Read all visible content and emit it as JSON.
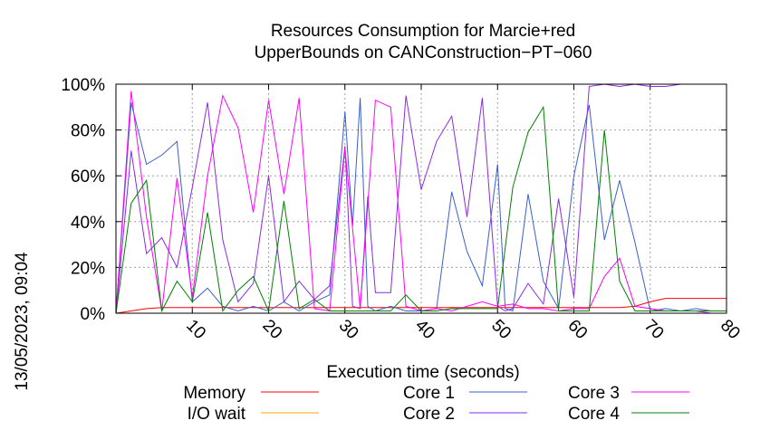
{
  "chart_data": {
    "type": "line",
    "title": [
      "Resources Consumption for Marcie+red",
      "UpperBounds on CANConstruction−PT−060"
    ],
    "xlabel": "Execution time (seconds)",
    "ylabel": "",
    "side_label": "13/05/2023, 09:04",
    "xlim": [
      0,
      80
    ],
    "ylim": [
      0,
      100
    ],
    "x_ticks": [
      10,
      20,
      30,
      40,
      50,
      60,
      70,
      80
    ],
    "y_ticks": [
      0,
      20,
      40,
      60,
      80,
      100
    ],
    "y_tick_labels": [
      "0%",
      "20%",
      "40%",
      "60%",
      "80%",
      "100%"
    ],
    "grid": true,
    "legend_position": "bottom",
    "series": [
      {
        "name": "Memory",
        "color": "#ff0000",
        "x": [
          0,
          2,
          4,
          6,
          8,
          10,
          12,
          14,
          16,
          18,
          20,
          22,
          24,
          26,
          28,
          30,
          32,
          34,
          36,
          38,
          40,
          42,
          44,
          46,
          48,
          50,
          52,
          54,
          56,
          58,
          60,
          62,
          64,
          66,
          68,
          70,
          72,
          74,
          76,
          78,
          80
        ],
        "y": [
          0,
          1,
          2,
          2.5,
          2.5,
          2.5,
          2.5,
          2.5,
          2.5,
          2.5,
          2.5,
          2.5,
          2.5,
          2.5,
          2.5,
          2.5,
          2.5,
          2.5,
          2.5,
          2.5,
          2.5,
          2.5,
          2.5,
          2.5,
          2.5,
          2.5,
          2.5,
          2.5,
          2.5,
          2.5,
          2.5,
          2.5,
          2.5,
          2.5,
          3,
          5,
          6.5,
          6.5,
          6.5,
          6.5,
          6.5
        ]
      },
      {
        "name": "I/O wait",
        "color": "#ffa500",
        "x": [
          0,
          10,
          20,
          30,
          40,
          50,
          60,
          70,
          80
        ],
        "y": [
          0,
          0,
          0,
          0,
          0,
          0,
          0,
          0,
          0
        ]
      },
      {
        "name": "Core 1",
        "color": "#3a5fcd",
        "x": [
          0,
          2,
          4,
          6,
          8,
          10,
          12,
          14,
          16,
          18,
          20,
          22,
          24,
          26,
          28,
          30,
          31,
          32,
          33,
          34,
          35,
          36,
          38,
          40,
          42,
          44,
          46,
          48,
          50,
          51,
          52,
          54,
          56,
          58,
          60,
          62,
          64,
          66,
          68,
          70,
          72,
          74,
          76,
          78,
          80
        ],
        "y": [
          0,
          92,
          65,
          69,
          75,
          5,
          11,
          3,
          1,
          3,
          1,
          5,
          1,
          5,
          8,
          88,
          38,
          94,
          3,
          1,
          2,
          3,
          1,
          1,
          2,
          53,
          27,
          12,
          65,
          2,
          1,
          52,
          14,
          2,
          60,
          91,
          32,
          58,
          31,
          1,
          2,
          1,
          2,
          1,
          1
        ]
      },
      {
        "name": "Core 2",
        "color": "#8a2be2",
        "x": [
          0,
          2,
          4,
          6,
          8,
          10,
          12,
          14,
          16,
          18,
          20,
          22,
          24,
          26,
          28,
          30,
          31,
          32,
          33,
          34,
          36,
          38,
          40,
          42,
          44,
          46,
          48,
          50,
          51,
          52,
          54,
          56,
          58,
          60,
          62,
          64,
          66,
          68,
          70,
          72,
          74,
          76,
          78,
          80
        ],
        "y": [
          0,
          71,
          26,
          33,
          20,
          55,
          92,
          32,
          5,
          13,
          60,
          5,
          14,
          6,
          12,
          73,
          3,
          2,
          51,
          9,
          9,
          95,
          54,
          75,
          86,
          42,
          94,
          3,
          1,
          2,
          13,
          4,
          50,
          7,
          99,
          100,
          99,
          100,
          99,
          99,
          100,
          100,
          100,
          100
        ]
      },
      {
        "name": "Core 3",
        "color": "#ff00ff",
        "x": [
          0,
          2,
          4,
          6,
          8,
          10,
          12,
          14,
          16,
          18,
          20,
          22,
          24,
          26,
          28,
          30,
          32,
          34,
          36,
          38,
          40,
          42,
          44,
          46,
          48,
          50,
          52,
          54,
          56,
          58,
          60,
          62,
          64,
          66,
          68,
          70,
          72,
          74,
          76,
          78,
          80
        ],
        "y": [
          0,
          97,
          42,
          1,
          59,
          7,
          60,
          95,
          81,
          44,
          93,
          52,
          94,
          2,
          1,
          72,
          2,
          93,
          90,
          3,
          1,
          2,
          1,
          3,
          5,
          3,
          4,
          2,
          2,
          1,
          2,
          2,
          16,
          24,
          3,
          2,
          1,
          1,
          1,
          0,
          0
        ]
      },
      {
        "name": "Core 4",
        "color": "#008000",
        "x": [
          0,
          2,
          4,
          6,
          8,
          10,
          12,
          14,
          16,
          18,
          20,
          22,
          24,
          26,
          28,
          30,
          32,
          34,
          36,
          38,
          40,
          42,
          44,
          46,
          48,
          50,
          52,
          54,
          56,
          58,
          60,
          62,
          64,
          66,
          68,
          70,
          72,
          74,
          76,
          78,
          80
        ],
        "y": [
          0,
          48,
          58,
          1,
          14,
          5,
          44,
          1,
          10,
          16,
          1,
          49,
          2,
          6,
          1,
          1,
          1,
          1,
          1,
          8,
          1,
          1,
          2,
          2,
          2,
          2,
          55,
          79,
          90,
          1,
          1,
          1,
          80,
          14,
          1,
          1,
          1,
          1,
          1,
          1,
          1
        ]
      }
    ]
  }
}
